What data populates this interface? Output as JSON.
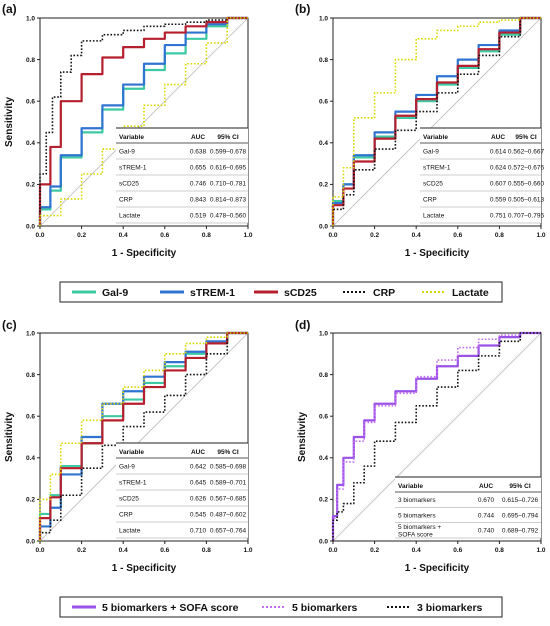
{
  "colors": {
    "Gal-9": "#3cc9a4",
    "sTREM-1": "#2f74d0",
    "sCD25": "#b51f2e",
    "CRP": "#111111",
    "Lactate": "#d9d900",
    "5 biomarkers + SOFA score": "#9b52e6",
    "5 biomarkers": "#c36ff0",
    "3 biomarkers": "#111111"
  },
  "legend_top": [
    {
      "name": "Gal-9",
      "style": "solid"
    },
    {
      "name": "sTREM-1",
      "style": "solid"
    },
    {
      "name": "sCD25",
      "style": "solid"
    },
    {
      "name": "CRP",
      "style": "dotted"
    },
    {
      "name": "Lactate",
      "style": "dotted"
    }
  ],
  "legend_bottom": [
    {
      "name": "5 biomarkers + SOFA score",
      "style": "solid"
    },
    {
      "name": "5 biomarkers",
      "style": "dotted"
    },
    {
      "name": "3 biomarkers",
      "style": "dotted"
    }
  ],
  "chart_data": [
    {
      "type": "line",
      "panel": "(a)",
      "xlabel": "1 - Specificity",
      "ylabel": "Sensitivity",
      "xlim": [
        0,
        1
      ],
      "ylim": [
        0,
        1
      ],
      "ticks": [
        "0.0",
        "0.2",
        "0.4",
        "0.6",
        "0.8",
        "1.0"
      ],
      "table": {
        "header": [
          "Variable",
          "AUC",
          "95% CI"
        ],
        "rows": [
          [
            "Gal-9",
            "0.638",
            "0.599–0.678"
          ],
          [
            "sTREM-1",
            "0.655",
            "0.616–0.695"
          ],
          [
            "sCD25",
            "0.746",
            "0.710–0.781"
          ],
          [
            "CRP",
            "0.843",
            "0.814–0.873"
          ],
          [
            "Lactate",
            "0.519",
            "0.478–0.560"
          ]
        ]
      },
      "series": [
        {
          "name": "Gal-9",
          "style": "solid",
          "x": [
            0,
            0.05,
            0.1,
            0.2,
            0.3,
            0.4,
            0.5,
            0.6,
            0.7,
            0.8,
            0.9,
            1
          ],
          "y": [
            0,
            0.08,
            0.17,
            0.33,
            0.45,
            0.56,
            0.66,
            0.75,
            0.83,
            0.9,
            0.96,
            1
          ]
        },
        {
          "name": "sTREM-1",
          "style": "solid",
          "x": [
            0,
            0.05,
            0.1,
            0.2,
            0.3,
            0.4,
            0.5,
            0.6,
            0.7,
            0.8,
            0.9,
            1
          ],
          "y": [
            0,
            0.09,
            0.19,
            0.34,
            0.47,
            0.58,
            0.68,
            0.78,
            0.87,
            0.93,
            0.97,
            1
          ]
        },
        {
          "name": "sCD25",
          "style": "solid",
          "x": [
            0,
            0.05,
            0.1,
            0.2,
            0.3,
            0.4,
            0.5,
            0.6,
            0.7,
            0.8,
            0.9,
            1
          ],
          "y": [
            0,
            0.2,
            0.38,
            0.6,
            0.73,
            0.81,
            0.86,
            0.9,
            0.93,
            0.96,
            0.98,
            1
          ]
        },
        {
          "name": "CRP",
          "style": "dotted",
          "x": [
            0,
            0.03,
            0.06,
            0.1,
            0.15,
            0.2,
            0.3,
            0.4,
            0.5,
            0.6,
            0.7,
            0.8,
            0.9,
            1
          ],
          "y": [
            0,
            0.25,
            0.45,
            0.62,
            0.74,
            0.82,
            0.89,
            0.92,
            0.94,
            0.96,
            0.97,
            0.98,
            0.99,
            1
          ]
        },
        {
          "name": "Lactate",
          "style": "dotted",
          "x": [
            0,
            0.1,
            0.2,
            0.3,
            0.4,
            0.5,
            0.6,
            0.7,
            0.8,
            0.9,
            1
          ],
          "y": [
            0,
            0.05,
            0.13,
            0.25,
            0.37,
            0.48,
            0.58,
            0.68,
            0.78,
            0.88,
            1
          ]
        }
      ]
    },
    {
      "type": "line",
      "panel": "(b)",
      "xlabel": "1 - Specificity",
      "ylabel": "",
      "xlim": [
        0,
        1
      ],
      "ylim": [
        0,
        1
      ],
      "ticks": [
        "0.0",
        "0.2",
        "0.4",
        "0.6",
        "0.8",
        "1.0"
      ],
      "table": {
        "header": [
          "Variable",
          "AUC",
          "95% CI"
        ],
        "rows": [
          [
            "Gal-9",
            "0.614",
            "0.562–0.667"
          ],
          [
            "sTREM-1",
            "0.624",
            "0.572–0.676"
          ],
          [
            "sCD25",
            "0.607",
            "0.555–0.660"
          ],
          [
            "CRP",
            "0.559",
            "0.505–0.613"
          ],
          [
            "Lactate",
            "0.751",
            "0.707–0.795"
          ]
        ]
      },
      "series": [
        {
          "name": "Gal-9",
          "style": "solid",
          "x": [
            0,
            0.05,
            0.1,
            0.2,
            0.3,
            0.4,
            0.5,
            0.6,
            0.7,
            0.8,
            0.9,
            1
          ],
          "y": [
            0,
            0.12,
            0.2,
            0.33,
            0.43,
            0.52,
            0.6,
            0.68,
            0.76,
            0.84,
            0.92,
            1
          ]
        },
        {
          "name": "sTREM-1",
          "style": "solid",
          "x": [
            0,
            0.05,
            0.1,
            0.2,
            0.3,
            0.4,
            0.5,
            0.6,
            0.7,
            0.8,
            0.9,
            1
          ],
          "y": [
            0,
            0.11,
            0.2,
            0.34,
            0.45,
            0.55,
            0.63,
            0.72,
            0.8,
            0.87,
            0.94,
            1
          ]
        },
        {
          "name": "sCD25",
          "style": "solid",
          "x": [
            0,
            0.05,
            0.1,
            0.2,
            0.3,
            0.4,
            0.5,
            0.6,
            0.7,
            0.8,
            0.9,
            1
          ],
          "y": [
            0,
            0.1,
            0.18,
            0.31,
            0.42,
            0.53,
            0.61,
            0.69,
            0.77,
            0.85,
            0.93,
            1
          ]
        },
        {
          "name": "CRP",
          "style": "dotted",
          "x": [
            0,
            0.05,
            0.1,
            0.2,
            0.3,
            0.4,
            0.5,
            0.6,
            0.7,
            0.8,
            0.9,
            1
          ],
          "y": [
            0,
            0.08,
            0.15,
            0.27,
            0.37,
            0.46,
            0.55,
            0.64,
            0.73,
            0.82,
            0.91,
            1
          ]
        },
        {
          "name": "Lactate",
          "style": "dotted",
          "x": [
            0,
            0.05,
            0.1,
            0.2,
            0.3,
            0.4,
            0.5,
            0.6,
            0.7,
            0.8,
            0.9,
            1
          ],
          "y": [
            0,
            0.14,
            0.28,
            0.52,
            0.64,
            0.8,
            0.9,
            0.94,
            0.96,
            0.98,
            0.99,
            1
          ]
        }
      ]
    },
    {
      "type": "line",
      "panel": "(c)",
      "xlabel": "1 - Specificity",
      "ylabel": "Sensitivity",
      "xlim": [
        0,
        1
      ],
      "ylim": [
        0,
        1
      ],
      "ticks": [
        "0.0",
        "0.2",
        "0.4",
        "0.6",
        "0.8",
        "1.0"
      ],
      "table": {
        "header": [
          "Variable",
          "AUC",
          "95% CI"
        ],
        "rows": [
          [
            "Gal-9",
            "0.642",
            "0.585–0.698"
          ],
          [
            "sTREM-1",
            "0.645",
            "0.589–0.701"
          ],
          [
            "sCD25",
            "0.626",
            "0.567–0.685"
          ],
          [
            "CRP",
            "0.545",
            "0.487–0.602"
          ],
          [
            "Lactate",
            "0.710",
            "0.657–0.764"
          ]
        ]
      },
      "series": [
        {
          "name": "Gal-9",
          "style": "solid",
          "x": [
            0,
            0.05,
            0.1,
            0.2,
            0.3,
            0.4,
            0.5,
            0.6,
            0.7,
            0.8,
            0.9,
            1
          ],
          "y": [
            0,
            0.13,
            0.22,
            0.36,
            0.47,
            0.6,
            0.68,
            0.76,
            0.84,
            0.9,
            0.95,
            1
          ]
        },
        {
          "name": "sTREM-1",
          "style": "solid",
          "x": [
            0,
            0.05,
            0.1,
            0.2,
            0.3,
            0.4,
            0.5,
            0.6,
            0.7,
            0.8,
            0.9,
            1
          ],
          "y": [
            0,
            0.07,
            0.16,
            0.32,
            0.5,
            0.66,
            0.72,
            0.79,
            0.86,
            0.91,
            0.96,
            1
          ]
        },
        {
          "name": "sCD25",
          "style": "solid",
          "x": [
            0,
            0.05,
            0.1,
            0.2,
            0.3,
            0.4,
            0.5,
            0.6,
            0.7,
            0.8,
            0.9,
            1
          ],
          "y": [
            0,
            0.11,
            0.21,
            0.35,
            0.47,
            0.58,
            0.66,
            0.74,
            0.82,
            0.88,
            0.95,
            1
          ]
        },
        {
          "name": "CRP",
          "style": "dotted",
          "x": [
            0,
            0.05,
            0.1,
            0.2,
            0.3,
            0.4,
            0.5,
            0.6,
            0.7,
            0.8,
            0.9,
            1
          ],
          "y": [
            0,
            0.04,
            0.1,
            0.22,
            0.35,
            0.46,
            0.55,
            0.62,
            0.7,
            0.8,
            0.9,
            1
          ]
        },
        {
          "name": "Lactate",
          "style": "dotted",
          "x": [
            0,
            0.05,
            0.1,
            0.2,
            0.3,
            0.4,
            0.5,
            0.6,
            0.7,
            0.8,
            0.9,
            1
          ],
          "y": [
            0,
            0.2,
            0.32,
            0.47,
            0.58,
            0.66,
            0.74,
            0.82,
            0.9,
            0.95,
            0.98,
            1
          ]
        }
      ]
    },
    {
      "type": "line",
      "panel": "(d)",
      "xlabel": "1 - Specificity",
      "ylabel": "Sensitivity",
      "xlim": [
        0,
        1
      ],
      "ylim": [
        0,
        1
      ],
      "ticks": [
        "0.0",
        "0.2",
        "0.4",
        "0.6",
        "0.8",
        "1.0"
      ],
      "table": {
        "header": [
          "Variable",
          "AUC",
          "95% CI"
        ],
        "rows": [
          [
            "3 biomarkers",
            "0.670",
            "0.615–0.726"
          ],
          [
            "5 biomarkers",
            "0.744",
            "0.695–0.794"
          ],
          [
            "5 biomarkers + SOFA score",
            "0.740",
            "0.689–0.792"
          ]
        ]
      },
      "series": [
        {
          "name": "5 biomarkers + SOFA score",
          "style": "solid",
          "x": [
            0,
            0.02,
            0.05,
            0.1,
            0.15,
            0.2,
            0.3,
            0.4,
            0.5,
            0.6,
            0.7,
            0.8,
            0.9,
            1
          ],
          "y": [
            0,
            0.12,
            0.27,
            0.4,
            0.5,
            0.58,
            0.66,
            0.72,
            0.78,
            0.84,
            0.89,
            0.94,
            0.98,
            1
          ]
        },
        {
          "name": "5 biomarkers",
          "style": "dotted",
          "x": [
            0,
            0.02,
            0.05,
            0.1,
            0.15,
            0.2,
            0.3,
            0.4,
            0.5,
            0.6,
            0.7,
            0.8,
            0.9,
            1
          ],
          "y": [
            0,
            0.11,
            0.25,
            0.38,
            0.48,
            0.57,
            0.65,
            0.71,
            0.79,
            0.87,
            0.93,
            0.97,
            0.99,
            1
          ]
        },
        {
          "name": "3 biomarkers",
          "style": "dotted",
          "x": [
            0,
            0.02,
            0.05,
            0.1,
            0.15,
            0.2,
            0.3,
            0.4,
            0.5,
            0.6,
            0.7,
            0.8,
            0.9,
            1
          ],
          "y": [
            0,
            0.1,
            0.14,
            0.18,
            0.28,
            0.36,
            0.48,
            0.57,
            0.65,
            0.74,
            0.82,
            0.89,
            0.96,
            1
          ]
        }
      ]
    }
  ]
}
